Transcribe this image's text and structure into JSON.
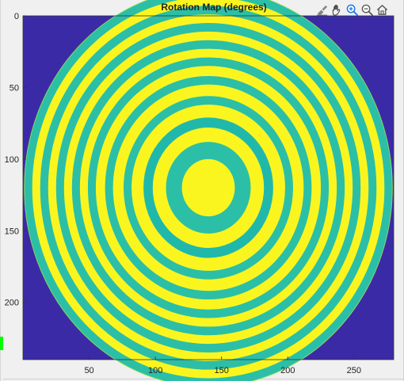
{
  "figure": {
    "title": "Rotation Map (degrees)",
    "toolbar": {
      "icons": [
        "brush-export-icon",
        "pan-hand-icon",
        "zoom-in-icon",
        "zoom-out-icon",
        "home-icon"
      ]
    },
    "colors": {
      "background": "#3b2aa6",
      "yellow": "#fbf51f",
      "teal": "#2bbfa7",
      "green": "#54cc7a",
      "deep_teal": "#21b8ac"
    }
  },
  "chart_data": {
    "type": "heatmap",
    "title": "Rotation Map (degrees)",
    "xlabel": "",
    "ylabel": "",
    "x_ticks": [
      50,
      100,
      150,
      200,
      250
    ],
    "y_ticks": [
      0,
      50,
      100,
      150,
      200
    ],
    "xlim": [
      0,
      280
    ],
    "ylim": [
      0,
      240
    ],
    "grid": false,
    "legend": "none",
    "circle_center": [
      140,
      120
    ],
    "circle_radius": 139,
    "center_disk_radius": 20,
    "rings": [
      {
        "inner_radius": 20,
        "outer_radius": 32,
        "color": "#2bbfa7"
      },
      {
        "inner_radius": 32,
        "outer_radius": 42,
        "color": "#fbf51f"
      },
      {
        "inner_radius": 42,
        "outer_radius": 49,
        "color": "#21b8ac"
      },
      {
        "inner_radius": 49,
        "outer_radius": 58,
        "color": "#fbf51f"
      },
      {
        "inner_radius": 58,
        "outer_radius": 64,
        "color": "#2bbfa7"
      },
      {
        "inner_radius": 64,
        "outer_radius": 72,
        "color": "#fbf51f"
      },
      {
        "inner_radius": 72,
        "outer_radius": 78,
        "color": "#2bbfa7"
      },
      {
        "inner_radius": 78,
        "outer_radius": 85,
        "color": "#fbf51f"
      },
      {
        "inner_radius": 85,
        "outer_radius": 91,
        "color": "#2bbfa7"
      },
      {
        "inner_radius": 91,
        "outer_radius": 97,
        "color": "#fbf51f"
      },
      {
        "inner_radius": 97,
        "outer_radius": 103,
        "color": "#2bbfa7"
      },
      {
        "inner_radius": 103,
        "outer_radius": 109,
        "color": "#fbf51f"
      },
      {
        "inner_radius": 109,
        "outer_radius": 115,
        "color": "#2bbfa7"
      },
      {
        "inner_radius": 115,
        "outer_radius": 121,
        "color": "#fbf51f"
      },
      {
        "inner_radius": 121,
        "outer_radius": 127,
        "color": "#2bbfa7"
      },
      {
        "inner_radius": 127,
        "outer_radius": 133,
        "color": "#fbf51f"
      },
      {
        "inner_radius": 133,
        "outer_radius": 139,
        "color": "#2bbfa7"
      }
    ]
  }
}
